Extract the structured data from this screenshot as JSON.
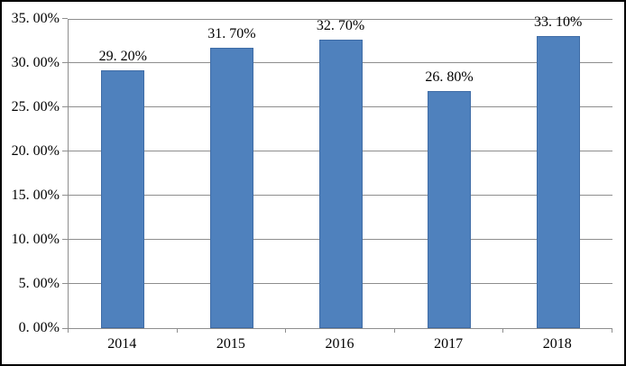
{
  "chart_data": {
    "type": "bar",
    "categories": [
      "2014",
      "2015",
      "2016",
      "2017",
      "2018"
    ],
    "values": [
      29.2,
      31.7,
      32.7,
      26.8,
      33.1
    ],
    "value_labels": [
      "29. 20%",
      "31. 70%",
      "32. 70%",
      "26. 80%",
      "33. 10%"
    ],
    "y_tick_labels": [
      "0. 00%",
      "5. 00%",
      "10. 00%",
      "15. 00%",
      "20. 00%",
      "25. 00%",
      "30. 00%",
      "35. 00%"
    ],
    "ylim": [
      0,
      35
    ],
    "y_step": 5,
    "grid": true,
    "legend": "none",
    "colors": {
      "bar_fill": "#4f81bd",
      "bar_border": "#3f6ca6",
      "gridline": "#8e8e8e",
      "axis": "#8e8e8e",
      "text": "#000000",
      "frame": "#000000",
      "background": "#ffffff"
    }
  }
}
